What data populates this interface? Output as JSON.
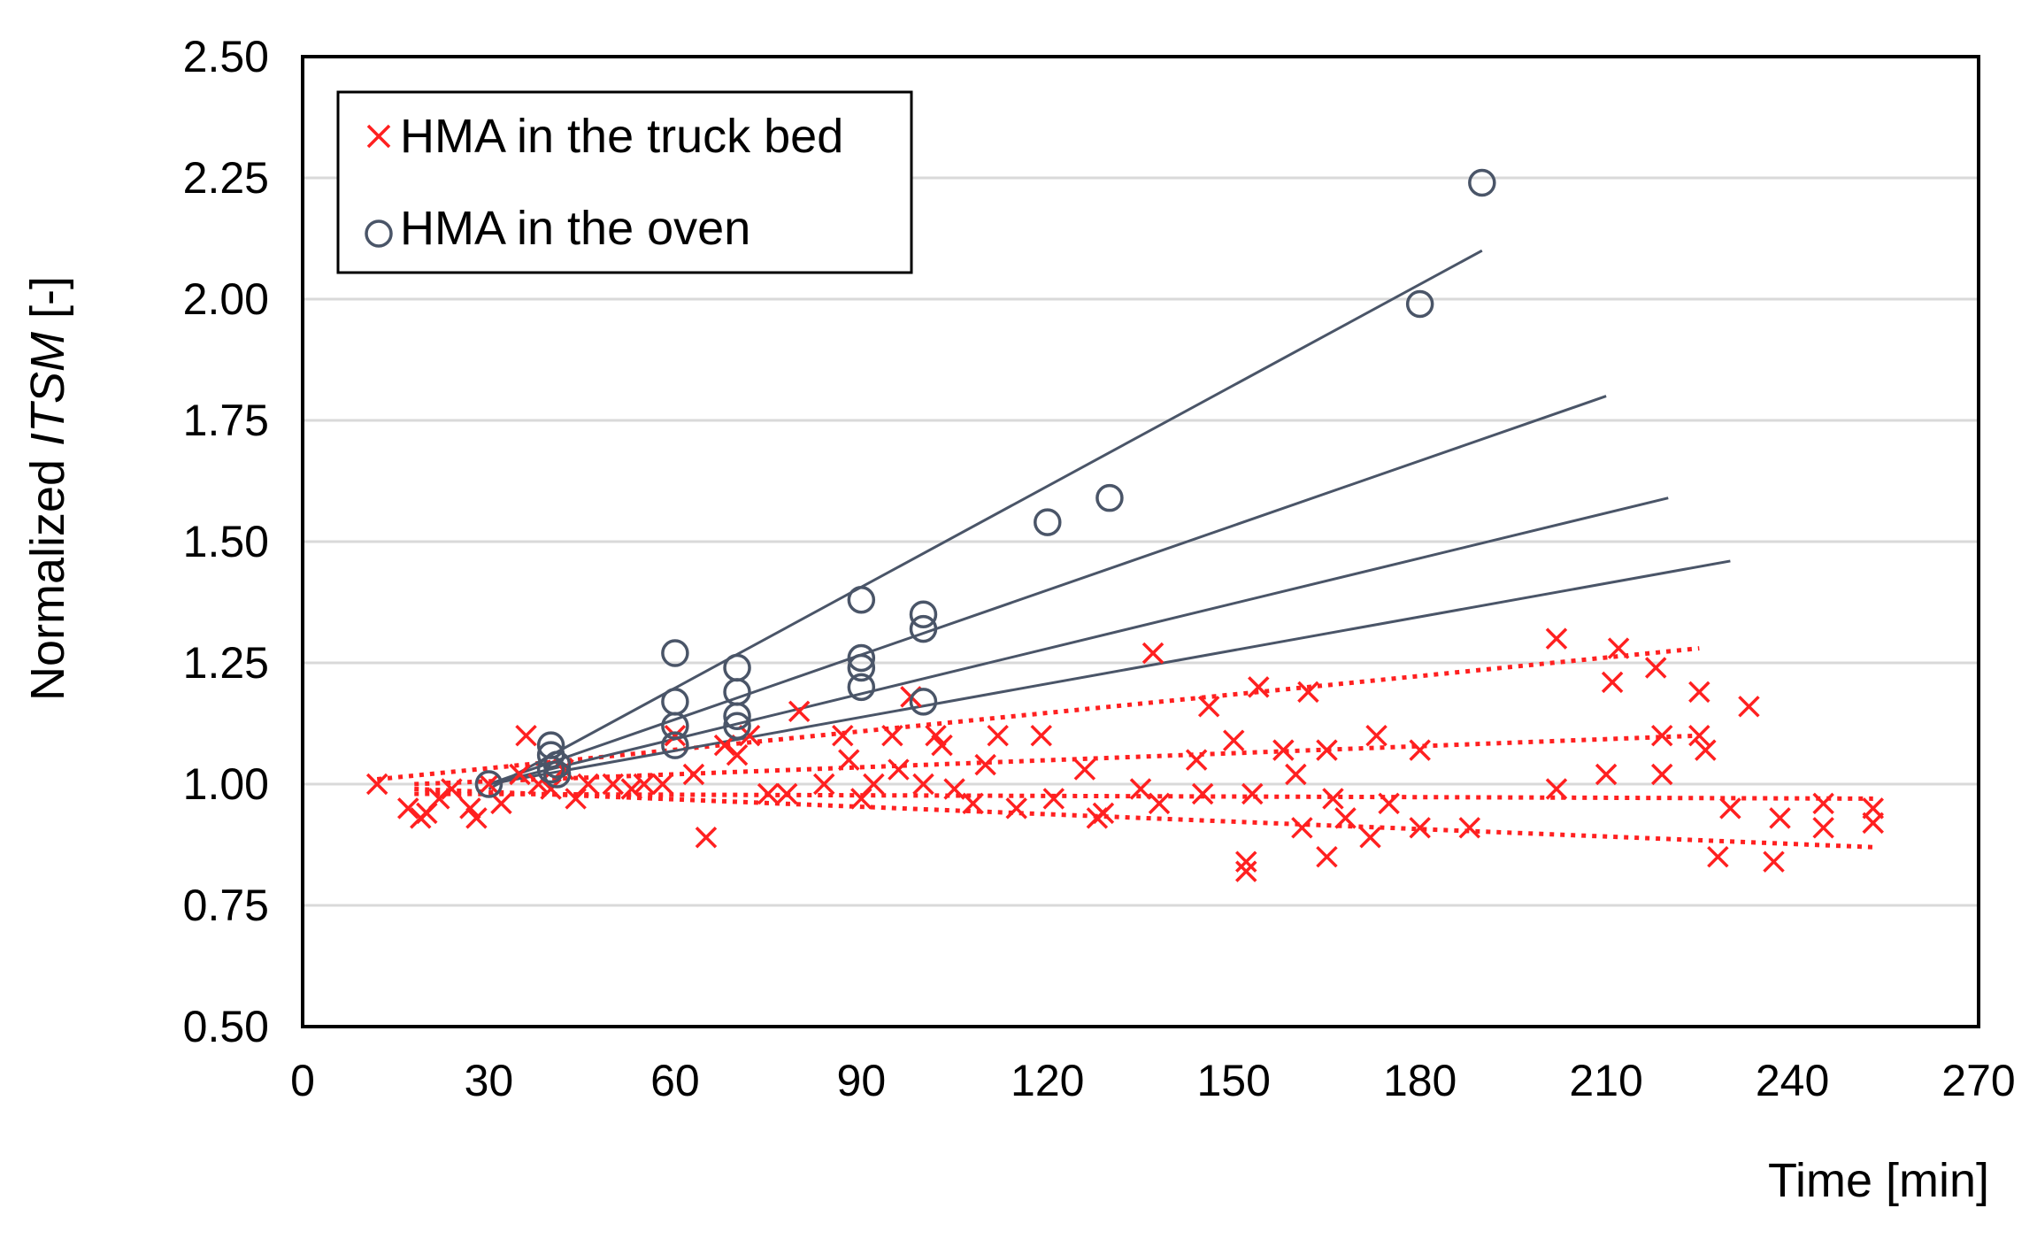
{
  "chart_data": {
    "type": "scatter",
    "xlabel": "Time  [min]",
    "ylabel_prefix": "Normalized ",
    "ylabel_italic": "ITSM",
    "ylabel_suffix": " [-]",
    "xlim": [
      0,
      270
    ],
    "ylim": [
      0.5,
      2.5
    ],
    "xticks": [
      "0",
      "30",
      "60",
      "90",
      "120",
      "150",
      "180",
      "210",
      "240",
      "270"
    ],
    "yticks": [
      "0.50",
      "0.75",
      "1.00",
      "1.25",
      "1.50",
      "1.75",
      "2.00",
      "2.25",
      "2.50"
    ],
    "grid": "horizontal",
    "legend_position": "top-left",
    "colors": {
      "truck": "#ff2020",
      "oven": "#4a5568",
      "grid": "#d9d9d9",
      "frame": "#000000"
    },
    "series": [
      {
        "name": "HMA in the truck bed",
        "marker": "x",
        "points": [
          [
            12,
            1.0
          ],
          [
            17,
            0.95
          ],
          [
            19,
            0.93
          ],
          [
            20,
            0.94
          ],
          [
            22,
            0.97
          ],
          [
            24,
            0.99
          ],
          [
            27,
            0.95
          ],
          [
            28,
            0.93
          ],
          [
            30,
            1.0
          ],
          [
            32,
            0.96
          ],
          [
            35,
            1.02
          ],
          [
            36,
            1.1
          ],
          [
            38,
            1.0
          ],
          [
            40,
            0.99
          ],
          [
            42,
            1.03
          ],
          [
            44,
            0.97
          ],
          [
            46,
            1.0
          ],
          [
            50,
            1.0
          ],
          [
            53,
            0.99
          ],
          [
            55,
            1.0
          ],
          [
            58,
            1.0
          ],
          [
            60,
            1.1
          ],
          [
            63,
            1.02
          ],
          [
            65,
            0.89
          ],
          [
            68,
            1.08
          ],
          [
            70,
            1.06
          ],
          [
            72,
            1.1
          ],
          [
            75,
            0.98
          ],
          [
            78,
            0.98
          ],
          [
            80,
            1.15
          ],
          [
            84,
            1.0
          ],
          [
            87,
            1.1
          ],
          [
            88,
            1.05
          ],
          [
            90,
            0.97
          ],
          [
            92,
            1.0
          ],
          [
            95,
            1.1
          ],
          [
            96,
            1.03
          ],
          [
            98,
            1.18
          ],
          [
            100,
            1.0
          ],
          [
            102,
            1.1
          ],
          [
            103,
            1.08
          ],
          [
            105,
            0.99
          ],
          [
            108,
            0.96
          ],
          [
            110,
            1.04
          ],
          [
            112,
            1.1
          ],
          [
            115,
            0.95
          ],
          [
            119,
            1.1
          ],
          [
            121,
            0.97
          ],
          [
            126,
            1.03
          ],
          [
            128,
            0.93
          ],
          [
            129,
            0.94
          ],
          [
            135,
            0.99
          ],
          [
            137,
            1.27
          ],
          [
            138,
            0.96
          ],
          [
            144,
            1.05
          ],
          [
            145,
            0.98
          ],
          [
            146,
            1.16
          ],
          [
            150,
            1.09
          ],
          [
            152,
            0.82
          ],
          [
            152,
            0.84
          ],
          [
            153,
            0.98
          ],
          [
            154,
            1.2
          ],
          [
            158,
            1.07
          ],
          [
            160,
            1.02
          ],
          [
            161,
            0.91
          ],
          [
            162,
            1.19
          ],
          [
            165,
            1.07
          ],
          [
            165,
            0.85
          ],
          [
            166,
            0.97
          ],
          [
            168,
            0.93
          ],
          [
            172,
            0.89
          ],
          [
            173,
            1.1
          ],
          [
            175,
            0.96
          ],
          [
            180,
            1.07
          ],
          [
            180,
            0.91
          ],
          [
            188,
            0.91
          ],
          [
            202,
            1.3
          ],
          [
            202,
            0.99
          ],
          [
            210,
            1.02
          ],
          [
            211,
            1.21
          ],
          [
            212,
            1.28
          ],
          [
            218,
            1.24
          ],
          [
            219,
            1.1
          ],
          [
            219,
            1.02
          ],
          [
            225,
            1.19
          ],
          [
            225,
            1.1
          ],
          [
            226,
            1.07
          ],
          [
            228,
            0.85
          ],
          [
            230,
            0.95
          ],
          [
            233,
            1.16
          ],
          [
            237,
            0.84
          ],
          [
            238,
            0.93
          ],
          [
            245,
            0.96
          ],
          [
            245,
            0.91
          ],
          [
            253,
            0.95
          ],
          [
            253,
            0.92
          ]
        ],
        "trend_lines": [
          [
            [
              12,
              1.01
            ],
            [
              225,
              1.28
            ]
          ],
          [
            [
              18,
              1.0
            ],
            [
              225,
              1.1
            ]
          ],
          [
            [
              18,
              0.98
            ],
            [
              253,
              0.97
            ]
          ],
          [
            [
              18,
              0.99
            ],
            [
              253,
              0.87
            ]
          ]
        ]
      },
      {
        "name": "HMA in the oven",
        "marker": "circle",
        "points": [
          [
            30,
            1.0
          ],
          [
            40,
            1.03
          ],
          [
            40,
            1.06
          ],
          [
            40,
            1.08
          ],
          [
            41,
            1.02
          ],
          [
            41,
            1.04
          ],
          [
            60,
            1.27
          ],
          [
            60,
            1.17
          ],
          [
            60,
            1.12
          ],
          [
            60,
            1.08
          ],
          [
            70,
            1.24
          ],
          [
            70,
            1.19
          ],
          [
            70,
            1.14
          ],
          [
            70,
            1.12
          ],
          [
            90,
            1.38
          ],
          [
            90,
            1.26
          ],
          [
            90,
            1.24
          ],
          [
            90,
            1.2
          ],
          [
            100,
            1.35
          ],
          [
            100,
            1.32
          ],
          [
            100,
            1.17
          ],
          [
            120,
            1.54
          ],
          [
            130,
            1.59
          ],
          [
            180,
            1.99
          ],
          [
            190,
            2.24
          ]
        ],
        "trend_lines": [
          [
            [
              30,
              0.99
            ],
            [
              190,
              2.1
            ]
          ],
          [
            [
              30,
              1.0
            ],
            [
              210,
              1.8
            ]
          ],
          [
            [
              30,
              1.0
            ],
            [
              220,
              1.59
            ]
          ],
          [
            [
              30,
              1.0
            ],
            [
              230,
              1.46
            ]
          ]
        ]
      }
    ]
  }
}
